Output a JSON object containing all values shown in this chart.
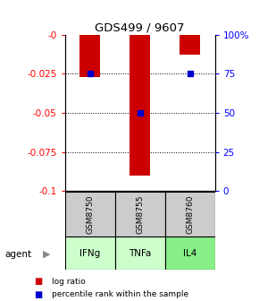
{
  "title": "GDS499 / 9607",
  "samples": [
    "GSM8750",
    "GSM8755",
    "GSM8760"
  ],
  "agents": [
    "IFNg",
    "TNFa",
    "IL4"
  ],
  "log_ratios": [
    -0.027,
    -0.09,
    -0.013
  ],
  "percentile_ranks": [
    75,
    50,
    75
  ],
  "ylim_left": [
    -0.1,
    0
  ],
  "ylim_right": [
    0,
    100
  ],
  "yticks_left": [
    0,
    -0.025,
    -0.05,
    -0.075,
    -0.1
  ],
  "yticks_left_labels": [
    "-0",
    "-0.025",
    "-0.05",
    "-0.075",
    "-0.1"
  ],
  "yticks_right": [
    100,
    75,
    50,
    25,
    0
  ],
  "yticks_right_labels": [
    "100%",
    "75",
    "50",
    "25",
    "0"
  ],
  "bar_color": "#cc0000",
  "dot_color": "#0000cc",
  "agent_colors": [
    "#ccffcc",
    "#aaddaa",
    "#88cc88"
  ],
  "sample_bg": "#cccccc",
  "bar_width": 0.4
}
